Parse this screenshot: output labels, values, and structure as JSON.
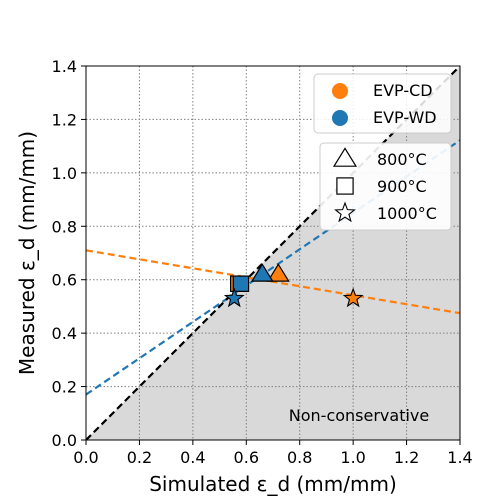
{
  "chart_data": {
    "type": "scatter",
    "xlabel": "Simulated ε_d (mm/mm)",
    "ylabel": "Measured ε_d (mm/mm)",
    "xlim": [
      0.0,
      1.4
    ],
    "ylim": [
      0.0,
      1.4
    ],
    "x_ticks": [
      "0.0",
      "0.2",
      "0.4",
      "0.6",
      "0.8",
      "1.0",
      "1.2",
      "1.4"
    ],
    "y_ticks": [
      "0.0",
      "0.2",
      "0.4",
      "0.6",
      "0.8",
      "1.0",
      "1.2",
      "1.4"
    ],
    "grid": true,
    "shaded_region": {
      "label": "Non-conservative",
      "description": "below 1:1 line",
      "color": "#d9d9d9"
    },
    "reference_line": {
      "type": "1:1",
      "color": "#000000",
      "style": "dashed"
    },
    "series": [
      {
        "name": "EVP-CD",
        "color": "#ff7f0e",
        "points": [
          {
            "x": 0.72,
            "y": 0.62,
            "marker": "triangle"
          },
          {
            "x": 0.57,
            "y": 0.585,
            "marker": "square"
          },
          {
            "x": 1.0,
            "y": 0.53,
            "marker": "star"
          }
        ],
        "fit_line": {
          "intercept": 0.71,
          "slope": -0.168
        }
      },
      {
        "name": "EVP-WD",
        "color": "#1f77b4",
        "points": [
          {
            "x": 0.66,
            "y": 0.62,
            "marker": "triangle"
          },
          {
            "x": 0.58,
            "y": 0.585,
            "marker": "square"
          },
          {
            "x": 0.555,
            "y": 0.53,
            "marker": "star"
          }
        ],
        "fit_line": {
          "intercept": 0.17,
          "slope": 0.68
        }
      }
    ],
    "legend_series": {
      "position": "top-right",
      "entries": [
        {
          "label": "EVP-CD",
          "color": "#ff7f0e"
        },
        {
          "label": "EVP-WD",
          "color": "#1f77b4"
        }
      ]
    },
    "legend_markers": {
      "position": "right",
      "entries": [
        {
          "label": "800°C",
          "marker": "triangle"
        },
        {
          "label": "900°C",
          "marker": "square"
        },
        {
          "label": "1000°C",
          "marker": "star"
        }
      ]
    }
  }
}
